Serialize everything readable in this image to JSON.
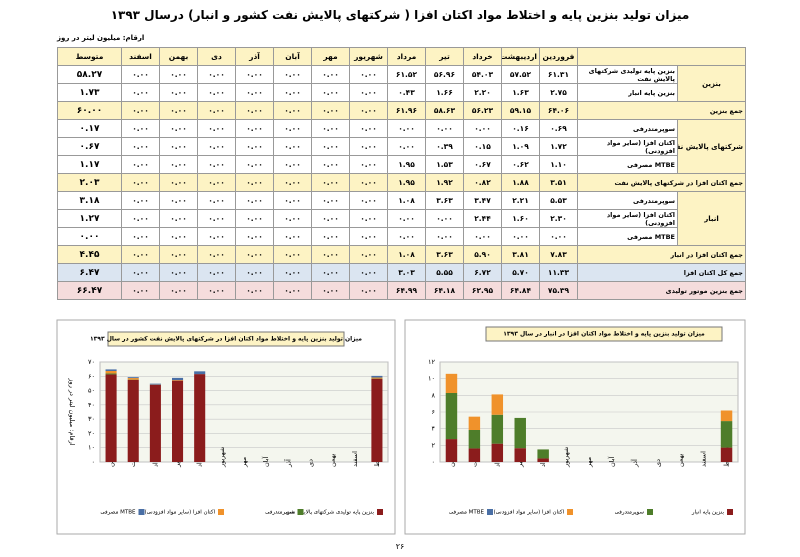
{
  "header": {
    "title": "میزان تولید بنزین پایه و اختلاط مواد اکتان افزا ( شرکتهای پالایش نفت کشور و انبار) درسال ۱۳۹۳",
    "unit": "ارقام: میلیون لیتر در روز"
  },
  "table": {
    "columns": [
      "فروردین",
      "اردیبهشت",
      "خرداد",
      "تیر",
      "مرداد",
      "شهریور",
      "مهر",
      "آبان",
      "آذر",
      "دی",
      "بهمن",
      "اسفند",
      "متوسط"
    ],
    "rows": [
      {
        "group": "بنزین",
        "items": [
          {
            "label": "بنزین پایه تولیدی شرکتهای پالایش نفت",
            "values": [
              "۶۱.۳۱",
              "۵۷.۵۲",
              "۵۴.۰۳",
              "۵۶.۹۶",
              "۶۱.۵۲",
              "۰.۰۰",
              "۰.۰۰",
              "۰.۰۰",
              "۰.۰۰",
              "۰.۰۰",
              "۰.۰۰",
              "۰.۰۰",
              "۵۸.۲۷"
            ]
          },
          {
            "label": "بنزین پایه انبار",
            "values": [
              "۲.۷۵",
              "۱.۶۳",
              "۲.۲۰",
              "۱.۶۶",
              "۰.۴۳",
              "۰.۰۰",
              "۰.۰۰",
              "۰.۰۰",
              "۰.۰۰",
              "۰.۰۰",
              "۰.۰۰",
              "۰.۰۰",
              "۱.۷۳"
            ]
          }
        ]
      },
      {
        "label": "جمع بنزین",
        "values": [
          "۶۴.۰۶",
          "۵۹.۱۵",
          "۵۶.۲۳",
          "۵۸.۶۳",
          "۶۱.۹۶",
          "۰.۰۰",
          "۰.۰۰",
          "۰.۰۰",
          "۰.۰۰",
          "۰.۰۰",
          "۰.۰۰",
          "۰.۰۰",
          "۶۰.۰۰"
        ]
      },
      {
        "group": "شرکتهای پالایش نفت",
        "items": [
          {
            "label": "سوپرمتدرفی",
            "values": [
              "۰.۶۹",
              "۰.۱۶",
              "۰.۰۰",
              "۰.۰۰",
              "۰.۰۰",
              "۰.۰۰",
              "۰.۰۰",
              "۰.۰۰",
              "۰.۰۰",
              "۰.۰۰",
              "۰.۰۰",
              "۰.۰۰",
              "۰.۱۷"
            ]
          },
          {
            "label": "اکتان افزا (سایر مواد افزودنی)",
            "values": [
              "۱.۷۲",
              "۱.۰۹",
              "۰.۱۵",
              "۰.۳۹",
              "۰.۰۰",
              "۰.۰۰",
              "۰.۰۰",
              "۰.۰۰",
              "۰.۰۰",
              "۰.۰۰",
              "۰.۰۰",
              "۰.۰۰",
              "۰.۶۷"
            ]
          },
          {
            "label": "MTBE مصرفی",
            "values": [
              "۱.۱۰",
              "۰.۶۲",
              "۰.۶۷",
              "۱.۵۳",
              "۱.۹۵",
              "۰.۰۰",
              "۰.۰۰",
              "۰.۰۰",
              "۰.۰۰",
              "۰.۰۰",
              "۰.۰۰",
              "۰.۰۰",
              "۱.۱۷"
            ]
          }
        ]
      },
      {
        "label": "جمع اکتان افزا در شرکتهای پالایش نفت",
        "values": [
          "۳.۵۱",
          "۱.۸۸",
          "۰.۸۲",
          "۱.۹۲",
          "۱.۹۵",
          "۰.۰۰",
          "۰.۰۰",
          "۰.۰۰",
          "۰.۰۰",
          "۰.۰۰",
          "۰.۰۰",
          "۰.۰۰",
          "۲.۰۳"
        ]
      },
      {
        "group": "انبار",
        "items": [
          {
            "label": "سوپرمتدرفی",
            "values": [
              "۵.۵۳",
              "۲.۲۱",
              "۳.۴۷",
              "۳.۶۳",
              "۱.۰۸",
              "۰.۰۰",
              "۰.۰۰",
              "۰.۰۰",
              "۰.۰۰",
              "۰.۰۰",
              "۰.۰۰",
              "۰.۰۰",
              "۳.۱۸"
            ]
          },
          {
            "label": "اکتان افزا (سایر مواد افزودنی)",
            "values": [
              "۲.۳۰",
              "۱.۶۰",
              "۲.۴۴",
              "۰.۰۰",
              "۰.۰۰",
              "۰.۰۰",
              "۰.۰۰",
              "۰.۰۰",
              "۰.۰۰",
              "۰.۰۰",
              "۰.۰۰",
              "۰.۰۰",
              "۱.۲۷"
            ]
          },
          {
            "label": "MTBE مصرفی",
            "values": [
              "۰.۰۰",
              "۰.۰۰",
              "۰.۰۰",
              "۰.۰۰",
              "۰.۰۰",
              "۰.۰۰",
              "۰.۰۰",
              "۰.۰۰",
              "۰.۰۰",
              "۰.۰۰",
              "۰.۰۰",
              "۰.۰۰",
              "۰.۰۰"
            ]
          }
        ]
      },
      {
        "label": "جمع اکتان افزا در انبار",
        "values": [
          "۷.۸۳",
          "۳.۸۱",
          "۵.۹۰",
          "۳.۶۳",
          "۱.۰۸",
          "۰.۰۰",
          "۰.۰۰",
          "۰.۰۰",
          "۰.۰۰",
          "۰.۰۰",
          "۰.۰۰",
          "۰.۰۰",
          "۴.۴۵"
        ]
      },
      {
        "label": "جمع کل اکتان افزا",
        "values": [
          "۱۱.۳۳",
          "۵.۷۰",
          "۶.۷۲",
          "۵.۵۵",
          "۳.۰۳",
          "۰.۰۰",
          "۰.۰۰",
          "۰.۰۰",
          "۰.۰۰",
          "۰.۰۰",
          "۰.۰۰",
          "۰.۰۰",
          "۶.۴۷"
        ]
      },
      {
        "label": "جمع بنزین موتور تولیدی",
        "values": [
          "۷۵.۳۹",
          "۶۴.۸۴",
          "۶۲.۹۵",
          "۶۴.۱۸",
          "۶۴.۹۹",
          "۰.۰۰",
          "۰.۰۰",
          "۰.۰۰",
          "۰.۰۰",
          "۰.۰۰",
          "۰.۰۰",
          "۰.۰۰",
          "۶۶.۴۷"
        ]
      }
    ]
  },
  "chart_data": [
    {
      "type": "bar",
      "stacked": true,
      "grid": true,
      "title": "میزان تولید بنزین پایه و اختلاط مواد اکتان افزا در شرکتهای پالایش نفت کشور در سال ۱۳۹۳",
      "y_label": "ارقام: میلیون لیتر در روز",
      "categories": [
        "فروردین",
        "اردیبهشت",
        "خرداد",
        "تیر",
        "مرداد",
        "شهریور",
        "مهر",
        "آبان",
        "آذر",
        "دی",
        "بهمن",
        "اسفند",
        "متوسط"
      ],
      "ylim": [
        0,
        70
      ],
      "yticks": [
        {
          "value": 0,
          "label": "۰"
        },
        {
          "value": 10,
          "label": "۱۰"
        },
        {
          "value": 20,
          "label": "۲۰"
        },
        {
          "value": 30,
          "label": "۳۰"
        },
        {
          "value": 40,
          "label": "۴۰"
        },
        {
          "value": 50,
          "label": "۵۰"
        },
        {
          "value": 60,
          "label": "۶۰"
        },
        {
          "value": 70,
          "label": "۷۰"
        }
      ],
      "series": [
        {
          "name": "بنزین پایه تولیدی شرکتهای پالایش نفت",
          "color": "#8b1c1c",
          "values": [
            61.31,
            57.52,
            54.03,
            56.96,
            61.52,
            0,
            0,
            0,
            0,
            0,
            0,
            0,
            58.27
          ]
        },
        {
          "name": "سوپرمتدرفی",
          "color": "#4e7d2a",
          "values": [
            0.69,
            0.16,
            0,
            0,
            0,
            0,
            0,
            0,
            0,
            0,
            0,
            0,
            0.17
          ]
        },
        {
          "name": "اکتان افزا (سایر مواد افزودنی)",
          "color": "#f0922b",
          "values": [
            1.72,
            1.09,
            0.15,
            0.39,
            0,
            0,
            0,
            0,
            0,
            0,
            0,
            0,
            0.67
          ]
        },
        {
          "name": "MTBE مصرفی",
          "color": "#4a6fa5",
          "values": [
            1.1,
            0.62,
            0.67,
            1.53,
            1.95,
            0,
            0,
            0,
            0,
            0,
            0,
            0,
            1.17
          ]
        }
      ]
    },
    {
      "type": "bar",
      "stacked": true,
      "grid": true,
      "title": "میزان تولید بنزین پایه و اختلاط مواد اکتان افزا در انبار در سال ۱۳۹۳",
      "categories": [
        "فروردین",
        "اردیبهشت",
        "خرداد",
        "تیر",
        "مرداد",
        "شهریور",
        "مهر",
        "آبان",
        "آذر",
        "دی",
        "بهمن",
        "اسفند",
        "متوسط"
      ],
      "ylim": [
        0,
        12
      ],
      "yticks": [
        {
          "value": 0,
          "label": "۰"
        },
        {
          "value": 2,
          "label": "۲"
        },
        {
          "value": 4,
          "label": "۴"
        },
        {
          "value": 6,
          "label": "۶"
        },
        {
          "value": 8,
          "label": "۸"
        },
        {
          "value": 10,
          "label": "۱۰"
        },
        {
          "value": 12,
          "label": "۱۲"
        }
      ],
      "series": [
        {
          "name": "بنزین پایه انبار",
          "color": "#8b1c1c",
          "values": [
            2.75,
            1.63,
            2.2,
            1.66,
            0.43,
            0,
            0,
            0,
            0,
            0,
            0,
            0,
            1.73
          ]
        },
        {
          "name": "سوپرمتدرفی",
          "color": "#4e7d2a",
          "values": [
            5.53,
            2.21,
            3.47,
            3.63,
            1.08,
            0,
            0,
            0,
            0,
            0,
            0,
            0,
            3.18
          ]
        },
        {
          "name": "اکتان افزا (سایر مواد افزودنی)",
          "color": "#f0922b",
          "values": [
            2.3,
            1.6,
            2.44,
            0,
            0,
            0,
            0,
            0,
            0,
            0,
            0,
            0,
            1.27
          ]
        },
        {
          "name": "MTBE مصرفی",
          "color": "#4a6fa5",
          "values": [
            0,
            0,
            0,
            0,
            0,
            0,
            0,
            0,
            0,
            0,
            0,
            0,
            0
          ]
        }
      ]
    }
  ],
  "footer": {
    "page": "۲۶"
  }
}
